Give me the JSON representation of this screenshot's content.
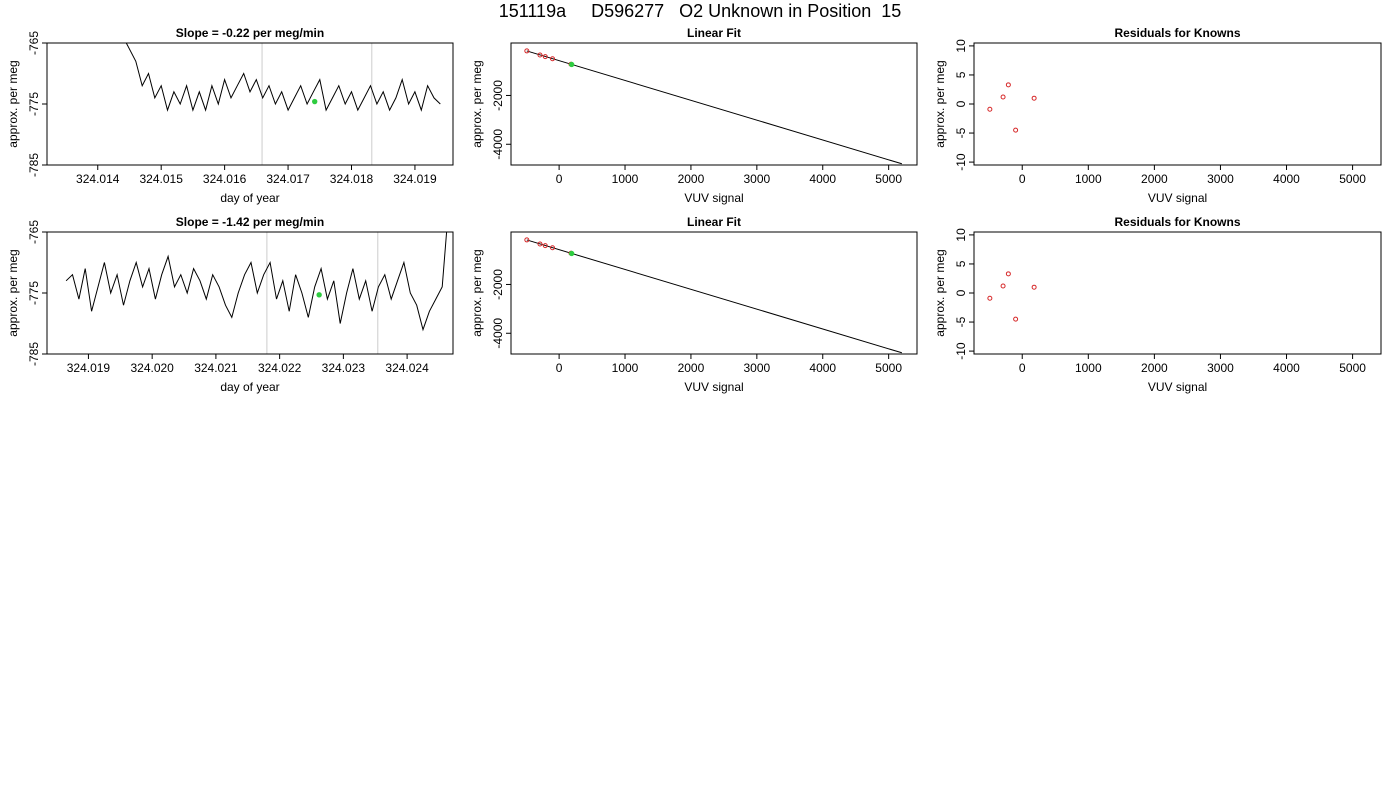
{
  "page_title": "151119a     D596277   O2 Unknown in Position  15",
  "chart_data": [
    {
      "type": "line",
      "title": "Slope =  -0.22  per meg/min",
      "xlabel": "day of year",
      "ylabel": "approx. per meg",
      "xlim": [
        324.0132,
        324.0196
      ],
      "ylim": [
        -785,
        -765
      ],
      "xticks": [
        324.014,
        324.015,
        324.016,
        324.017,
        324.018,
        324.019
      ],
      "xtick_labels": [
        "324.014",
        "324.015",
        "324.016",
        "324.017",
        "324.018",
        "324.019"
      ],
      "yticks": [
        -785,
        -775,
        -765
      ],
      "ytick_labels": [
        "-785",
        "-775",
        "-765"
      ],
      "vlines": [
        324.01659,
        324.01832
      ],
      "series": [
        {
          "x": [
            324.01445,
            324.0146,
            324.0147,
            324.0148,
            324.0149,
            324.015,
            324.0151,
            324.0152,
            324.0153,
            324.0154,
            324.0155,
            324.0156,
            324.0157,
            324.0158,
            324.0159,
            324.016,
            324.0161,
            324.0162,
            324.0163,
            324.0164,
            324.0165,
            324.0166,
            324.0167,
            324.0168,
            324.0169,
            324.017,
            324.0171,
            324.0172,
            324.0173,
            324.0174,
            324.0175,
            324.0176,
            324.0177,
            324.0178,
            324.0179,
            324.018,
            324.0181,
            324.0182,
            324.0183,
            324.0184,
            324.0185,
            324.0186,
            324.0187,
            324.0188,
            324.0189,
            324.019,
            324.0191,
            324.0192,
            324.0193,
            324.0194
          ],
          "y": [
            -765,
            -768,
            -772,
            -770,
            -774,
            -772,
            -776,
            -773,
            -775,
            -772,
            -776,
            -773,
            -776,
            -772,
            -775,
            -771,
            -774,
            -772,
            -770,
            -773,
            -771,
            -774,
            -772,
            -775,
            -773,
            -776,
            -774,
            -772,
            -775,
            -773,
            -771,
            -776,
            -774,
            -772,
            -775,
            -773,
            -776,
            -774,
            -772,
            -775,
            -773,
            -776,
            -774,
            -771,
            -775,
            -773,
            -776,
            -772,
            -774,
            -775
          ]
        }
      ],
      "markers": [
        {
          "x": 324.01742,
          "y": -774.6,
          "color": "#2ecc40"
        }
      ]
    },
    {
      "type": "scatter",
      "title": "Linear Fit",
      "xlabel": "VUV signal",
      "ylabel": "approx. per meg",
      "xlim": [
        -730,
        5430
      ],
      "ylim": [
        -4850,
        150
      ],
      "xticks": [
        0,
        1000,
        2000,
        3000,
        4000,
        5000
      ],
      "xtick_labels": [
        "0",
        "1000",
        "2000",
        "3000",
        "4000",
        "5000"
      ],
      "yticks": [
        -4000,
        -2000
      ],
      "ytick_labels": [
        "-4000",
        "-2000"
      ],
      "fit_line": {
        "x": [
          -490,
          5200
        ],
        "y": [
          -175,
          -4800
        ]
      },
      "knowns": {
        "x": [
          -490,
          -290,
          -210,
          -100,
          180
        ],
        "y": [
          -175,
          -340,
          -410,
          -495,
          -720
        ]
      },
      "unknown": {
        "x": 190,
        "y": -730,
        "color": "#2ecc40"
      }
    },
    {
      "type": "scatter",
      "title": "Residuals for Knowns",
      "xlabel": "VUV signal",
      "ylabel": "approx. per meg",
      "xlim": [
        -730,
        5430
      ],
      "ylim": [
        -10.5,
        10.5
      ],
      "xticks": [
        0,
        1000,
        2000,
        3000,
        4000,
        5000
      ],
      "xtick_labels": [
        "0",
        "1000",
        "2000",
        "3000",
        "4000",
        "5000"
      ],
      "yticks": [
        -10,
        -5,
        0,
        5,
        10
      ],
      "ytick_labels": [
        "-10",
        "-5",
        "0",
        "5",
        "10"
      ],
      "points": {
        "x": [
          -490,
          -290,
          -210,
          -100,
          180
        ],
        "y": [
          -0.9,
          1.2,
          3.3,
          -4.5,
          1.0
        ]
      }
    },
    {
      "type": "line",
      "title": "Slope =  -1.42  per meg/min",
      "xlabel": "day of year",
      "ylabel": "approx. per meg",
      "xlim": [
        324.01835,
        324.02472
      ],
      "ylim": [
        -785,
        -765
      ],
      "xticks": [
        324.019,
        324.02,
        324.021,
        324.022,
        324.023,
        324.024
      ],
      "xtick_labels": [
        "324.019",
        "324.020",
        "324.021",
        "324.022",
        "324.023",
        "324.024"
      ],
      "yticks": [
        -785,
        -775,
        -765
      ],
      "ytick_labels": [
        "-785",
        "-775",
        "-765"
      ],
      "vlines": [
        324.0218,
        324.02354
      ],
      "series": [
        {
          "x": [
            324.01865,
            324.01875,
            324.01885,
            324.01895,
            324.01905,
            324.01915,
            324.01925,
            324.01935,
            324.01945,
            324.01955,
            324.01965,
            324.01975,
            324.01985,
            324.01995,
            324.02005,
            324.02015,
            324.02025,
            324.02035,
            324.02045,
            324.02055,
            324.02065,
            324.02075,
            324.02085,
            324.02095,
            324.02105,
            324.02115,
            324.02125,
            324.02135,
            324.02145,
            324.02155,
            324.02165,
            324.02175,
            324.02185,
            324.02195,
            324.02205,
            324.02215,
            324.02225,
            324.02235,
            324.02245,
            324.02255,
            324.02265,
            324.02275,
            324.02285,
            324.02295,
            324.02305,
            324.02315,
            324.02325,
            324.02335,
            324.02345,
            324.02355,
            324.02365,
            324.02375,
            324.02385,
            324.02395,
            324.02405,
            324.02415,
            324.02425,
            324.02435,
            324.02445,
            324.02455,
            324.02462
          ],
          "y": [
            -773,
            -772,
            -776,
            -771,
            -778,
            -774,
            -770,
            -775,
            -772,
            -777,
            -773,
            -770,
            -774,
            -771,
            -776,
            -772,
            -769,
            -774,
            -772,
            -775,
            -771,
            -773,
            -776,
            -772,
            -774,
            -777,
            -779,
            -775,
            -772,
            -770,
            -775,
            -772,
            -770,
            -776,
            -773,
            -778,
            -772,
            -775,
            -779,
            -774,
            -771,
            -776,
            -773,
            -780,
            -775,
            -771,
            -776,
            -773,
            -778,
            -774,
            -772,
            -776,
            -773,
            -770,
            -775,
            -777,
            -781,
            -778,
            -776,
            -774,
            -765
          ]
        }
      ],
      "markers": [
        {
          "x": 324.02262,
          "y": -775.3,
          "color": "#2ecc40"
        }
      ]
    },
    {
      "type": "scatter",
      "title": "Linear Fit",
      "xlabel": "VUV signal",
      "ylabel": "approx. per meg",
      "xlim": [
        -730,
        5430
      ],
      "ylim": [
        -4850,
        150
      ],
      "xticks": [
        0,
        1000,
        2000,
        3000,
        4000,
        5000
      ],
      "xtick_labels": [
        "0",
        "1000",
        "2000",
        "3000",
        "4000",
        "5000"
      ],
      "yticks": [
        -4000,
        -2000
      ],
      "ytick_labels": [
        "-4000",
        "-2000"
      ],
      "fit_line": {
        "x": [
          -490,
          5200
        ],
        "y": [
          -175,
          -4800
        ]
      },
      "knowns": {
        "x": [
          -490,
          -290,
          -210,
          -100,
          180
        ],
        "y": [
          -175,
          -340,
          -410,
          -495,
          -720
        ]
      },
      "unknown": {
        "x": 190,
        "y": -730,
        "color": "#2ecc40"
      }
    },
    {
      "type": "scatter",
      "title": "Residuals for Knowns",
      "xlabel": "VUV signal",
      "ylabel": "approx. per meg",
      "xlim": [
        -730,
        5430
      ],
      "ylim": [
        -10.5,
        10.5
      ],
      "xticks": [
        0,
        1000,
        2000,
        3000,
        4000,
        5000
      ],
      "xtick_labels": [
        "0",
        "1000",
        "2000",
        "3000",
        "4000",
        "5000"
      ],
      "yticks": [
        -10,
        -5,
        0,
        5,
        10
      ],
      "ytick_labels": [
        "-10",
        "-5",
        "0",
        "5",
        "10"
      ],
      "points": {
        "x": [
          -490,
          -290,
          -210,
          -100,
          180
        ],
        "y": [
          -0.9,
          1.2,
          3.3,
          -4.5,
          1.0
        ]
      }
    }
  ]
}
